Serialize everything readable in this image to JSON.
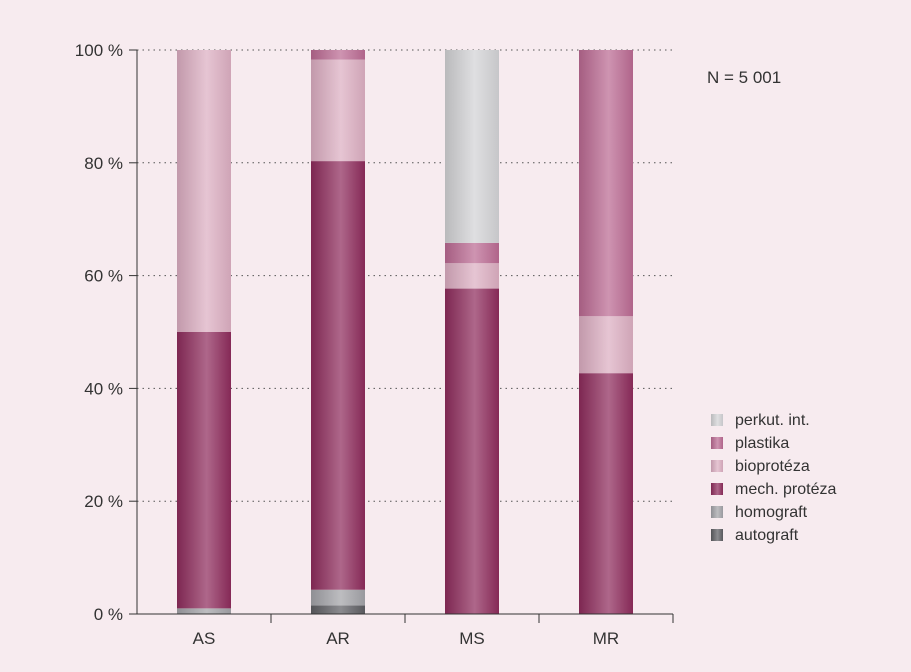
{
  "chart_data": {
    "type": "bar",
    "stacked": true,
    "orientation": "vertical",
    "categories": [
      "AS",
      "AR",
      "MS",
      "MR"
    ],
    "series": [
      {
        "name": "autograft",
        "color": "#5e5e63",
        "values": [
          0,
          1.5,
          0,
          0
        ]
      },
      {
        "name": "homograft",
        "color": "#a3a3a8",
        "values": [
          1.0,
          2.8,
          0,
          0
        ]
      },
      {
        "name": "mech. protéza",
        "color": "#8e2c5c",
        "values": [
          49,
          76,
          57.7,
          42.7
        ]
      },
      {
        "name": "bioprotéza",
        "color": "#dcaec2",
        "values": [
          50,
          18,
          4.5,
          10.1
        ]
      },
      {
        "name": "plastika",
        "color": "#bb6a93",
        "values": [
          0,
          1.7,
          3.6,
          47.2
        ]
      },
      {
        "name": "perkut. int.",
        "color": "#d3d3d6",
        "values": [
          0,
          0,
          34.2,
          0
        ]
      }
    ],
    "y_ticks": [
      "0 %",
      "20 %",
      "40 %",
      "60 %",
      "80 %",
      "100 %"
    ],
    "ylim": [
      0,
      100
    ],
    "grid": "horizontal dotted",
    "legend_position": "right",
    "annotation": "N = 5 001"
  }
}
